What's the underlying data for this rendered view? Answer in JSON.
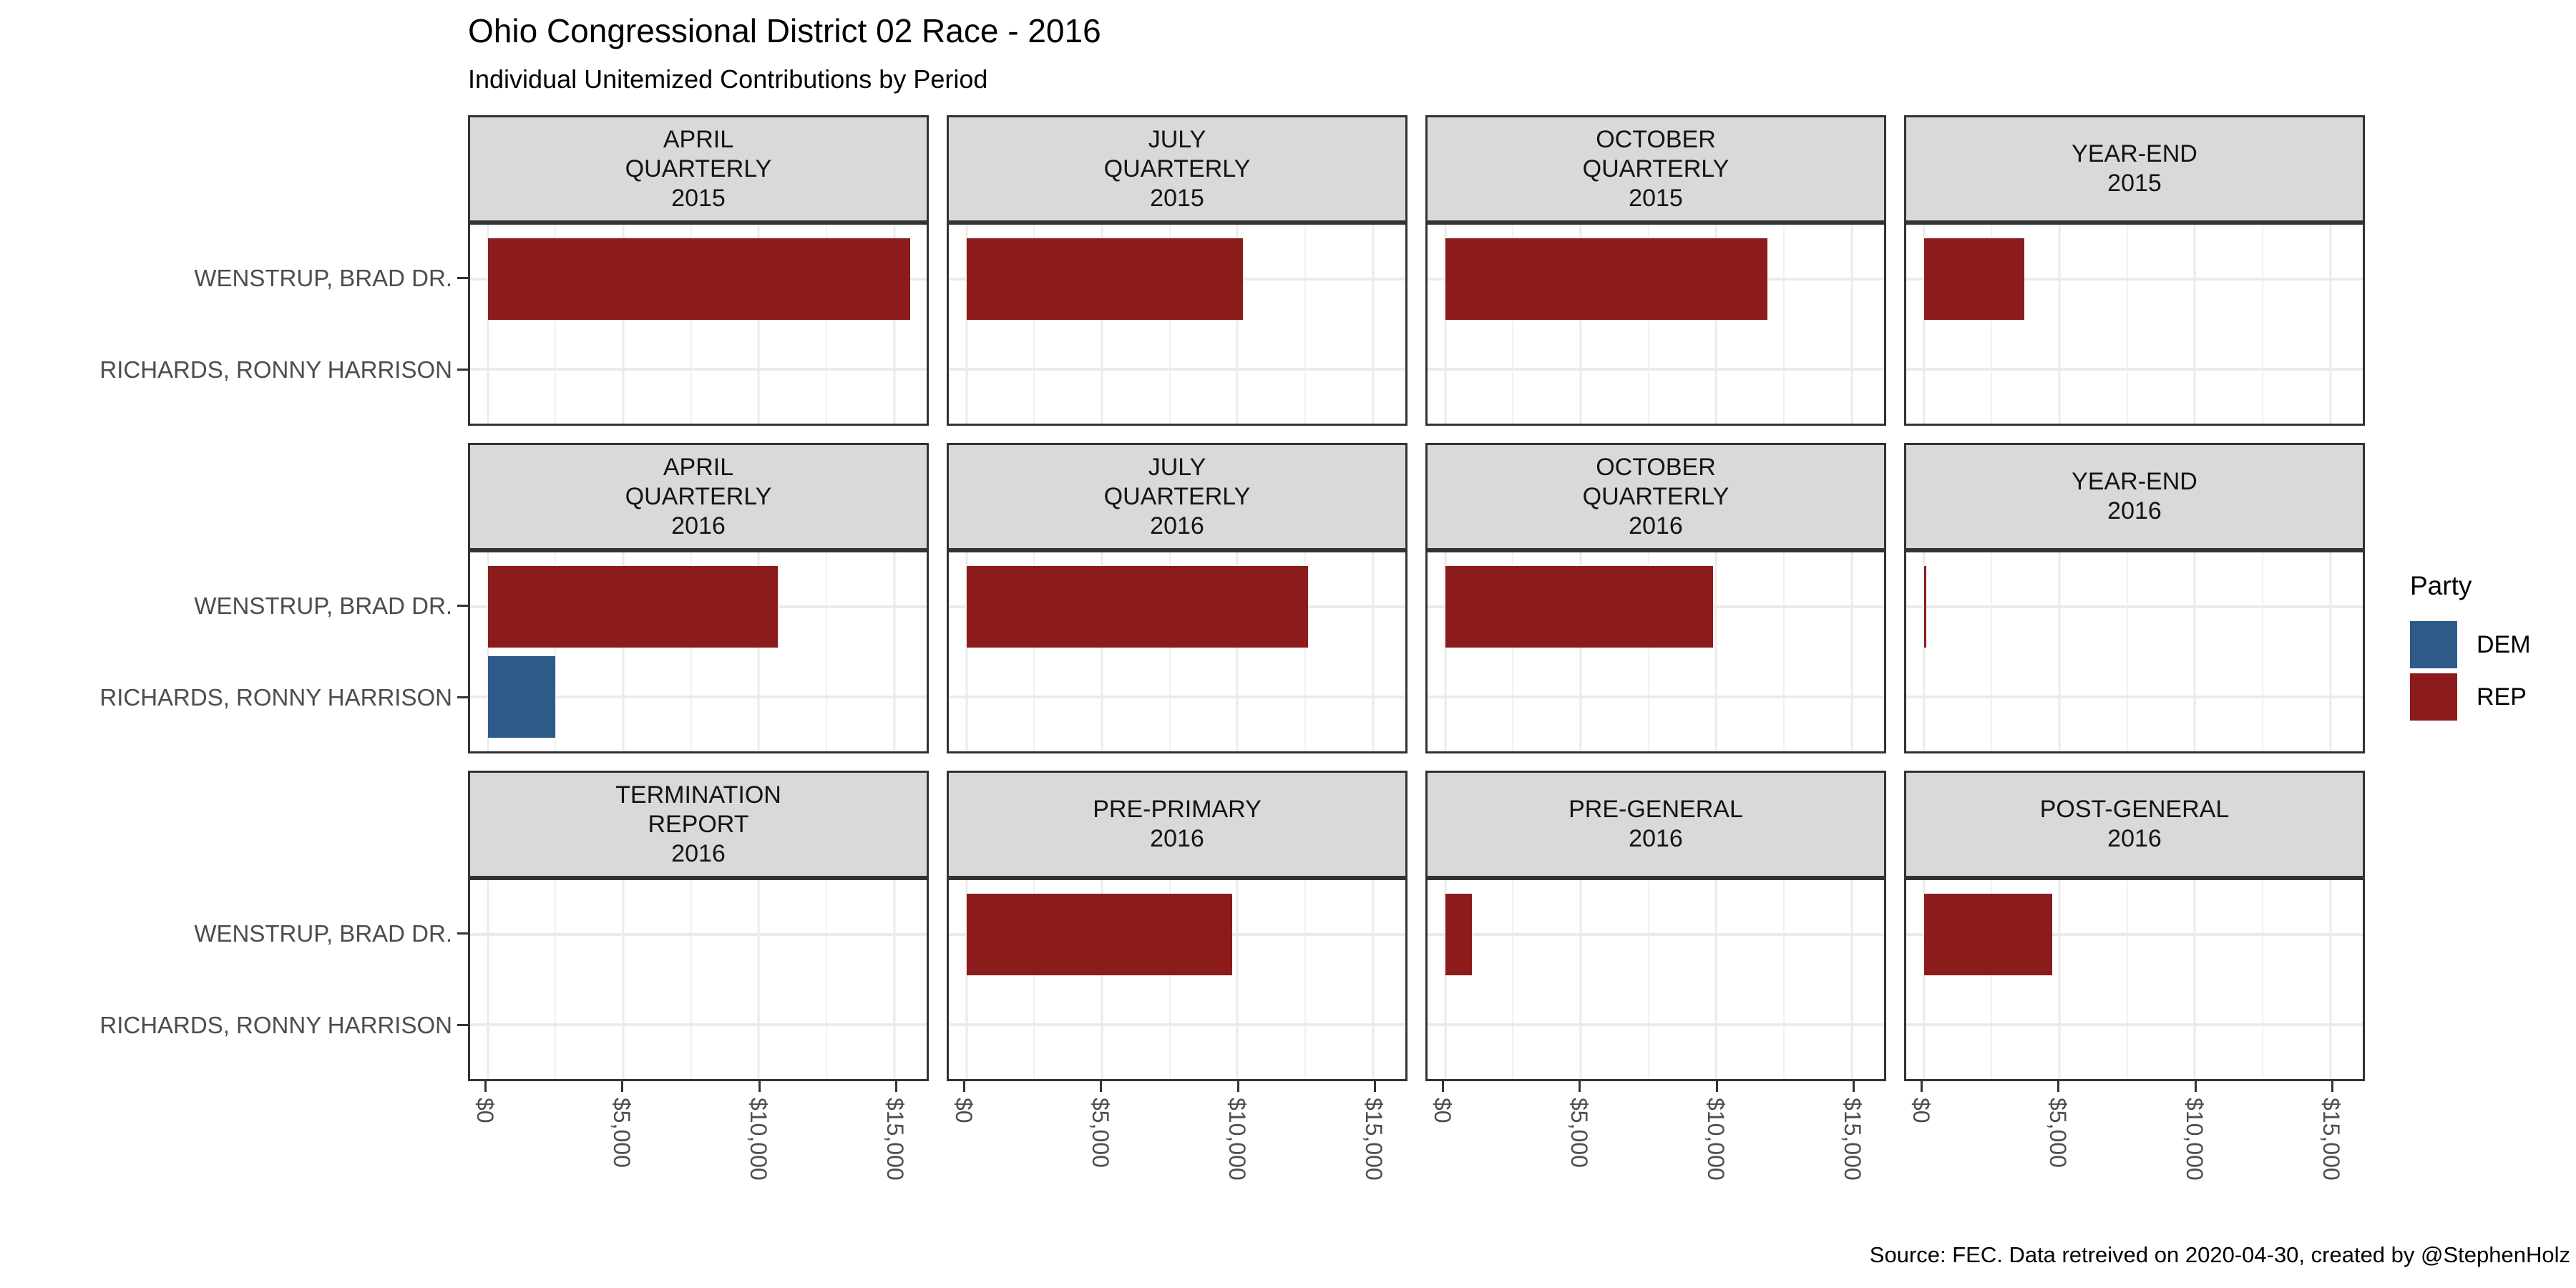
{
  "header": {
    "title": "Ohio Congressional District 02 Race - 2016",
    "subtitle": "Individual Unitemized Contributions by Period"
  },
  "footer": {
    "caption": "Source: FEC. Data retreived on 2020-04-30, created by @StephenHolz"
  },
  "colors": {
    "rep": "#8C1B1B",
    "dem": "#2E5A8A",
    "strip_bg": "#D9D9D9",
    "panel_border": "#333333",
    "grid_major": "#EBEBEB",
    "grid_minor": "#F1F1F1",
    "axis_text": "#4D4D4D",
    "tick": "#333333"
  },
  "chart_data": {
    "type": "bar",
    "orientation": "horizontal",
    "title": "Ohio Congressional District 02 Race - 2016",
    "subtitle": "Individual Unitemized Contributions by Period",
    "caption": "Source: FEC. Data retreived on 2020-04-30, created by @StephenHolz",
    "categories": [
      "WENSTRUP, BRAD DR.",
      "RICHARDS, RONNY HARRISON"
    ],
    "xlabel": "",
    "ylabel": "",
    "xlim": [
      -650,
      16200
    ],
    "x_ticks": [
      {
        "value": 0,
        "label": "$0"
      },
      {
        "value": 5000,
        "label": "$5,000"
      },
      {
        "value": 10000,
        "label": "$10,000"
      },
      {
        "value": 15000,
        "label": "$15,000"
      }
    ],
    "x_minor_step": 2500,
    "grid": true,
    "legend_position": "right",
    "legend": {
      "title": "Party",
      "items": [
        {
          "label": "DEM",
          "color": "#2E5A8A"
        },
        {
          "label": "REP",
          "color": "#8C1B1B"
        }
      ]
    },
    "facets": [
      {
        "label_lines": [
          "APRIL",
          "QUARTERLY",
          "2015"
        ],
        "bars": [
          {
            "candidate": "WENSTRUP, BRAD DR.",
            "party": "REP",
            "value": 15600
          }
        ]
      },
      {
        "label_lines": [
          "JULY",
          "QUARTERLY",
          "2015"
        ],
        "bars": [
          {
            "candidate": "WENSTRUP, BRAD DR.",
            "party": "REP",
            "value": 10200
          }
        ]
      },
      {
        "label_lines": [
          "OCTOBER",
          "QUARTERLY",
          "2015"
        ],
        "bars": [
          {
            "candidate": "WENSTRUP, BRAD DR.",
            "party": "REP",
            "value": 11900
          }
        ]
      },
      {
        "label_lines": [
          "YEAR-END",
          "2015"
        ],
        "bars": [
          {
            "candidate": "WENSTRUP, BRAD DR.",
            "party": "REP",
            "value": 3700
          }
        ]
      },
      {
        "label_lines": [
          "APRIL",
          "QUARTERLY",
          "2016"
        ],
        "bars": [
          {
            "candidate": "WENSTRUP, BRAD DR.",
            "party": "REP",
            "value": 10700
          },
          {
            "candidate": "RICHARDS, RONNY HARRISON",
            "party": "DEM",
            "value": 2500
          }
        ]
      },
      {
        "label_lines": [
          "JULY",
          "QUARTERLY",
          "2016"
        ],
        "bars": [
          {
            "candidate": "WENSTRUP, BRAD DR.",
            "party": "REP",
            "value": 12600
          }
        ]
      },
      {
        "label_lines": [
          "OCTOBER",
          "QUARTERLY",
          "2016"
        ],
        "bars": [
          {
            "candidate": "WENSTRUP, BRAD DR.",
            "party": "REP",
            "value": 9900
          }
        ]
      },
      {
        "label_lines": [
          "YEAR-END",
          "2016"
        ],
        "bars": [
          {
            "candidate": "WENSTRUP, BRAD DR.",
            "party": "REP",
            "value": 100
          }
        ]
      },
      {
        "label_lines": [
          "TERMINATION",
          "REPORT",
          "2016"
        ],
        "bars": []
      },
      {
        "label_lines": [
          "PRE-PRIMARY",
          "2016"
        ],
        "bars": [
          {
            "candidate": "WENSTRUP, BRAD DR.",
            "party": "REP",
            "value": 9800
          }
        ]
      },
      {
        "label_lines": [
          "PRE-GENERAL",
          "2016"
        ],
        "bars": [
          {
            "candidate": "WENSTRUP, BRAD DR.",
            "party": "REP",
            "value": 1000
          }
        ]
      },
      {
        "label_lines": [
          "POST-GENERAL",
          "2016"
        ],
        "bars": [
          {
            "candidate": "WENSTRUP, BRAD DR.",
            "party": "REP",
            "value": 4750
          }
        ]
      }
    ]
  }
}
